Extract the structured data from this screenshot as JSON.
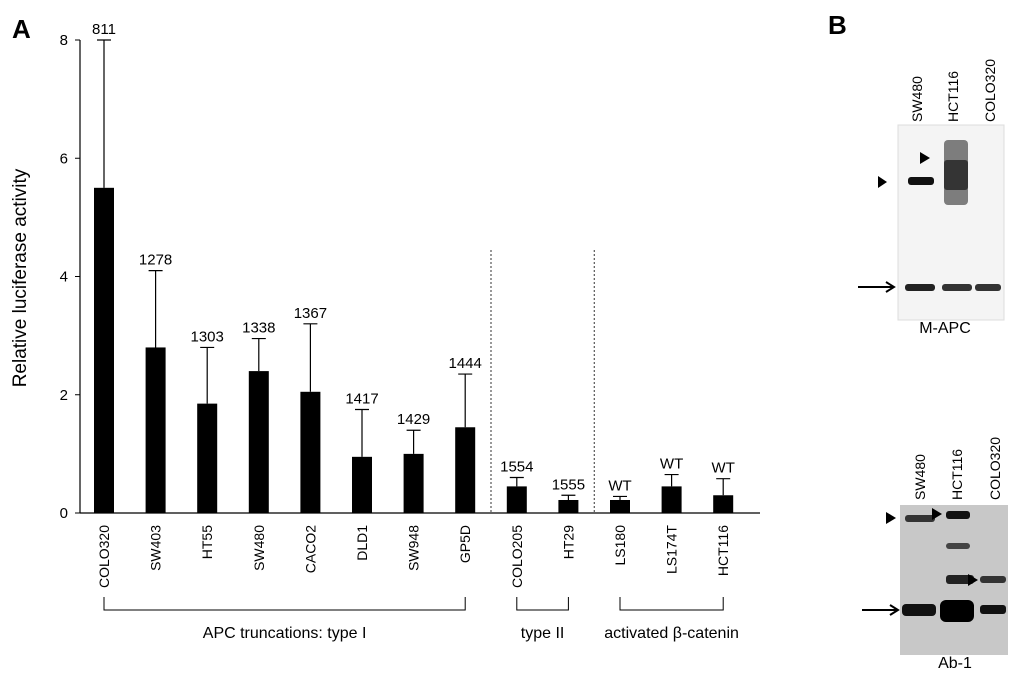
{
  "panel_a_label": "A",
  "chart_data": {
    "type": "bar",
    "y_label": "Relative luciferase activity",
    "categories": [
      "COLO320",
      "SW403",
      "HT55",
      "SW480",
      "CACO2",
      "DLD1",
      "SW948",
      "GP5D",
      "COLO205",
      "HT29",
      "LS180",
      "LS174T",
      "HCT116"
    ],
    "values": [
      5.5,
      2.8,
      1.85,
      2.4,
      2.05,
      0.95,
      1.0,
      1.45,
      0.45,
      0.22,
      0.22,
      0.45,
      0.3
    ],
    "errors": [
      2.5,
      1.3,
      0.95,
      0.55,
      1.15,
      0.8,
      0.4,
      0.9,
      0.15,
      0.08,
      0.06,
      0.2,
      0.28
    ],
    "annotations": [
      "811",
      "1278",
      "1303",
      "1338",
      "1367",
      "1417",
      "1429",
      "1444",
      "1554",
      "1555",
      "WT",
      "WT",
      "WT"
    ],
    "group_labels": [
      "APC truncations: type I",
      "type II",
      "activated β-catenin"
    ],
    "color": "#000000",
    "ylim": [
      0,
      8
    ],
    "yticks": [
      0,
      2,
      4,
      6,
      8
    ]
  },
  "panel_b": {
    "label": "B",
    "blots": [
      {
        "lanes": [
          "SW480",
          "HCT116",
          "COLO320"
        ],
        "antibody": "M-APC"
      },
      {
        "lanes": [
          "SW480",
          "HCT116",
          "COLO320"
        ],
        "antibody": "Ab-1"
      }
    ]
  }
}
